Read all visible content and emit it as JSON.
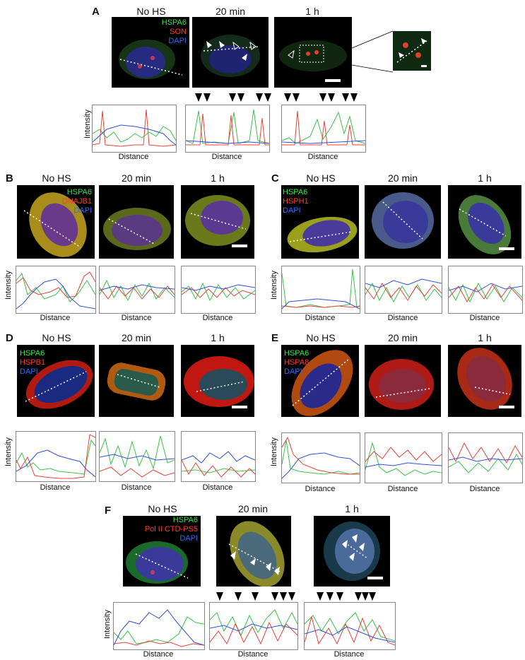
{
  "figure": {
    "panels": [
      {
        "id": "A",
        "markers": [
          "HSPA6",
          "SON",
          "DAPI"
        ],
        "conditions": [
          "No HS",
          "20 min",
          "1 h"
        ],
        "ylabel": "Intensity",
        "xlabel": "Distance"
      },
      {
        "id": "B",
        "markers": [
          "HSPA6",
          "DNAJB1",
          "DAPI"
        ],
        "conditions": [
          "No HS",
          "20 min",
          "1 h"
        ],
        "ylabel": "Intensity",
        "xlabel": "Distance"
      },
      {
        "id": "C",
        "markers": [
          "HSPA6",
          "HSPH1",
          "DAPI"
        ],
        "conditions": [
          "No HS",
          "20 min",
          "1 h"
        ],
        "ylabel": "Intensity",
        "xlabel": "Distance"
      },
      {
        "id": "D",
        "markers": [
          "HSPA6",
          "HSPB1",
          "DAPI"
        ],
        "conditions": [
          "No HS",
          "20 min",
          "1 h"
        ],
        "ylabel": "Intensity",
        "xlabel": "Distance"
      },
      {
        "id": "E",
        "markers": [
          "HSPA6",
          "HSPA8",
          "DAPI"
        ],
        "conditions": [
          "No HS",
          "20 min",
          "1 h"
        ],
        "ylabel": "Intensity",
        "xlabel": "Distance"
      },
      {
        "id": "F",
        "markers": [
          "HSPA6",
          "Pol II CTD-PS5",
          "DAPI"
        ],
        "conditions": [
          "No HS",
          "20 min",
          "1 h"
        ],
        "ylabel": "Intensity",
        "xlabel": "Distance"
      }
    ],
    "colors": {
      "green": "#2ee84a",
      "red": "#ff3b2e",
      "blue": "#2f6cff",
      "green_line": "#3cc24a",
      "red_line": "#e8433a",
      "blue_line": "#3050d8"
    }
  }
}
